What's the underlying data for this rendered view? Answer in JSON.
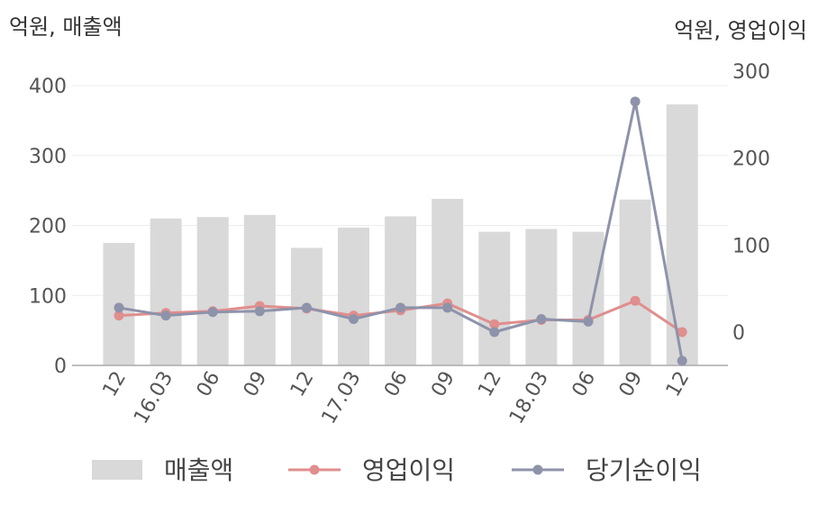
{
  "chart_data": {
    "type": "bar+line",
    "left_unit": "억원, 매출액",
    "right_unit": "억원, 영업이익",
    "categories": [
      "12",
      "16.03",
      "06",
      "09",
      "12",
      "17.03",
      "06",
      "09",
      "12",
      "18.03",
      "06",
      "09",
      "12"
    ],
    "ylim_left": [
      0,
      400
    ],
    "yticks_left": [
      0,
      100,
      200,
      300,
      400
    ],
    "ylim_right": [
      -40,
      300
    ],
    "yticks_right": [
      0,
      100,
      200,
      300
    ],
    "grid": true,
    "legend_position": "bottom",
    "series": [
      {
        "name": "매출액",
        "kind": "bar",
        "axis": "left",
        "color": "#d9d9d9",
        "values": [
          175,
          210,
          212,
          215,
          168,
          197,
          213,
          238,
          191,
          195,
          191,
          237,
          373
        ]
      },
      {
        "name": "영업이익",
        "kind": "line",
        "axis": "right",
        "color": "#e08e8e",
        "values": [
          19,
          22,
          24,
          30,
          27,
          19,
          25,
          33,
          9,
          14,
          14,
          36,
          0
        ]
      },
      {
        "name": "당기순이익",
        "kind": "line",
        "axis": "right",
        "color": "#8e93aa",
        "values": [
          28,
          19,
          23,
          24,
          28,
          15,
          28,
          28,
          0,
          15,
          12,
          265,
          -33
        ]
      }
    ]
  }
}
